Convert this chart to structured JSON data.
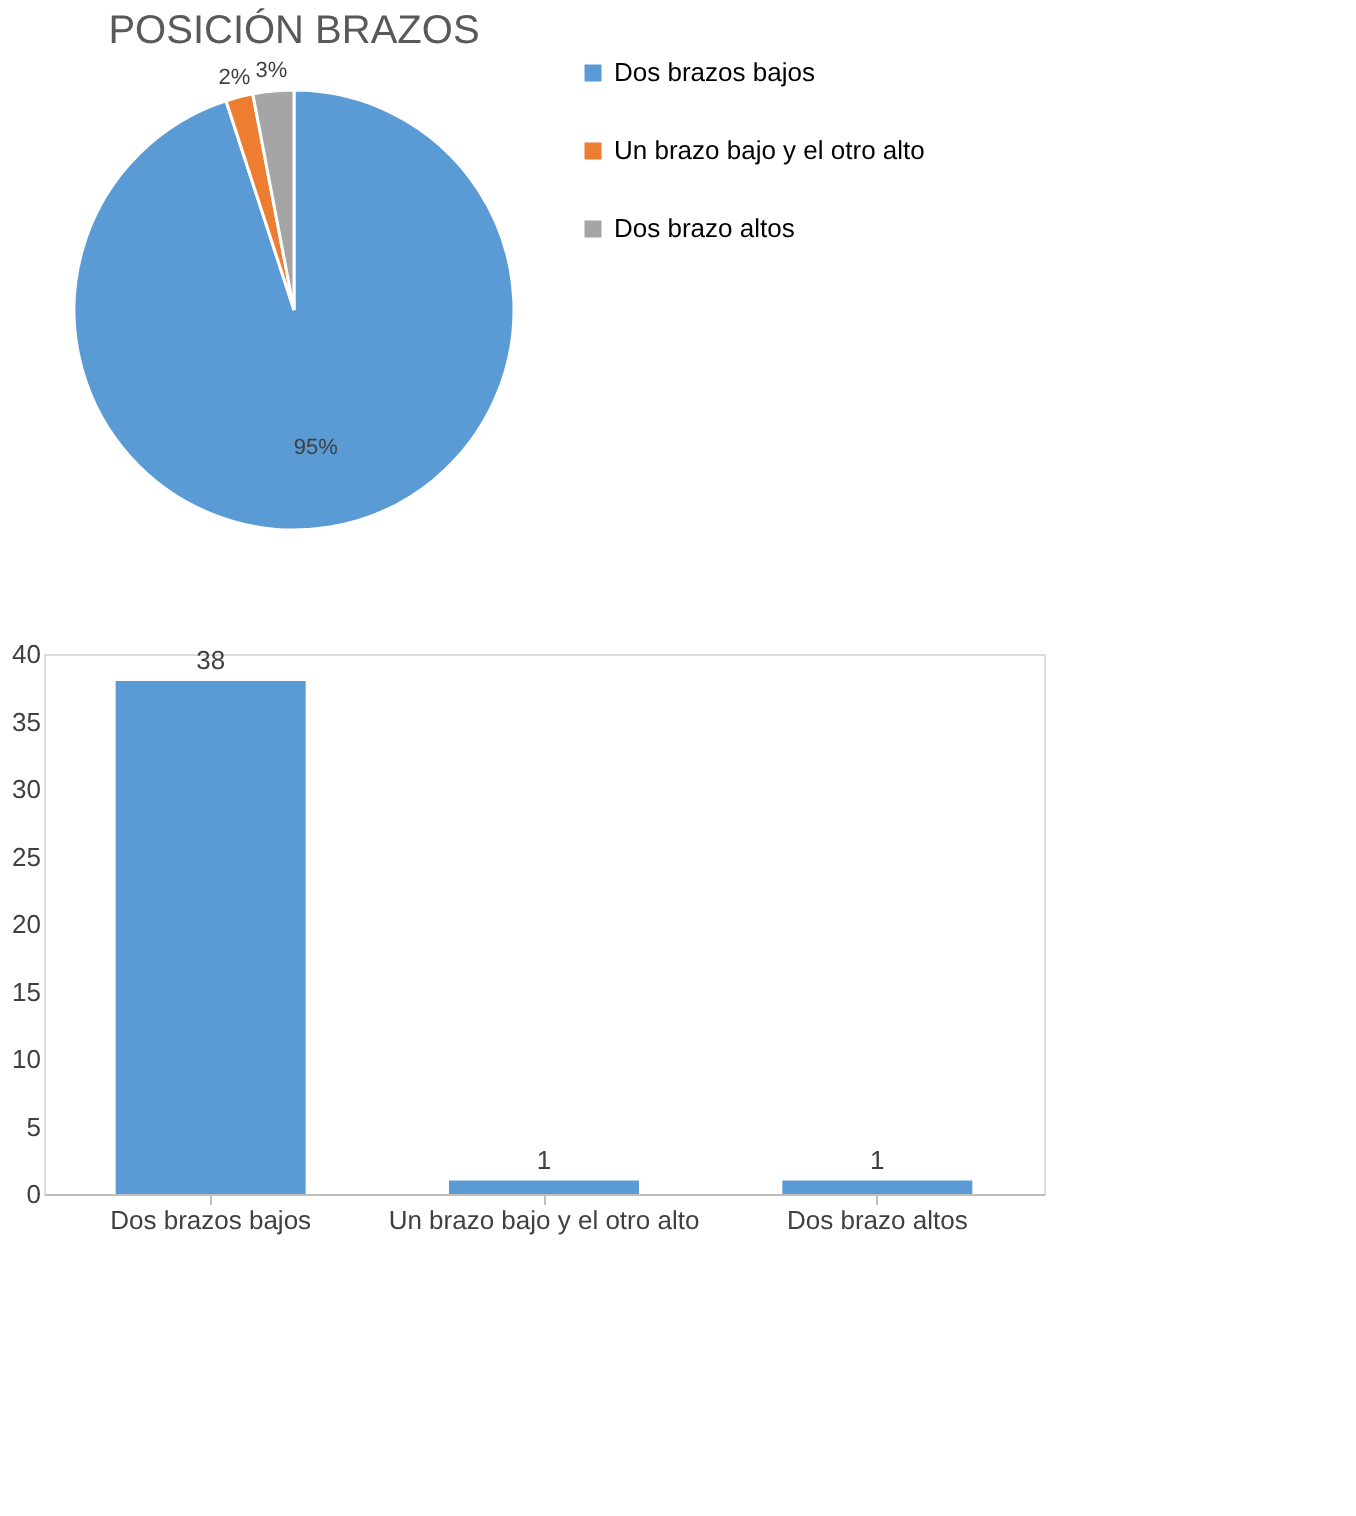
{
  "chart_data": [
    {
      "type": "pie",
      "title": "POSICIÓN BRAZOS",
      "categories": [
        "Dos brazos bajos",
        "Un brazo bajo y el otro alto",
        "Dos brazo altos"
      ],
      "values": [
        95,
        2,
        3
      ],
      "colors": [
        "#5b9bd5",
        "#ed7d31",
        "#a5a5a5"
      ],
      "value_labels": [
        "95%",
        "2%",
        "3%"
      ],
      "legend": "right"
    },
    {
      "type": "bar",
      "categories": [
        "Dos brazos bajos",
        "Un brazo bajo y el otro alto",
        "Dos brazo altos"
      ],
      "values": [
        38,
        1,
        1
      ],
      "color": "#5b9bd5",
      "ylim": [
        0,
        40
      ],
      "yticks": [
        0,
        5,
        10,
        15,
        20,
        25,
        30,
        35,
        40
      ],
      "data_labels": true,
      "grid": false
    }
  ]
}
